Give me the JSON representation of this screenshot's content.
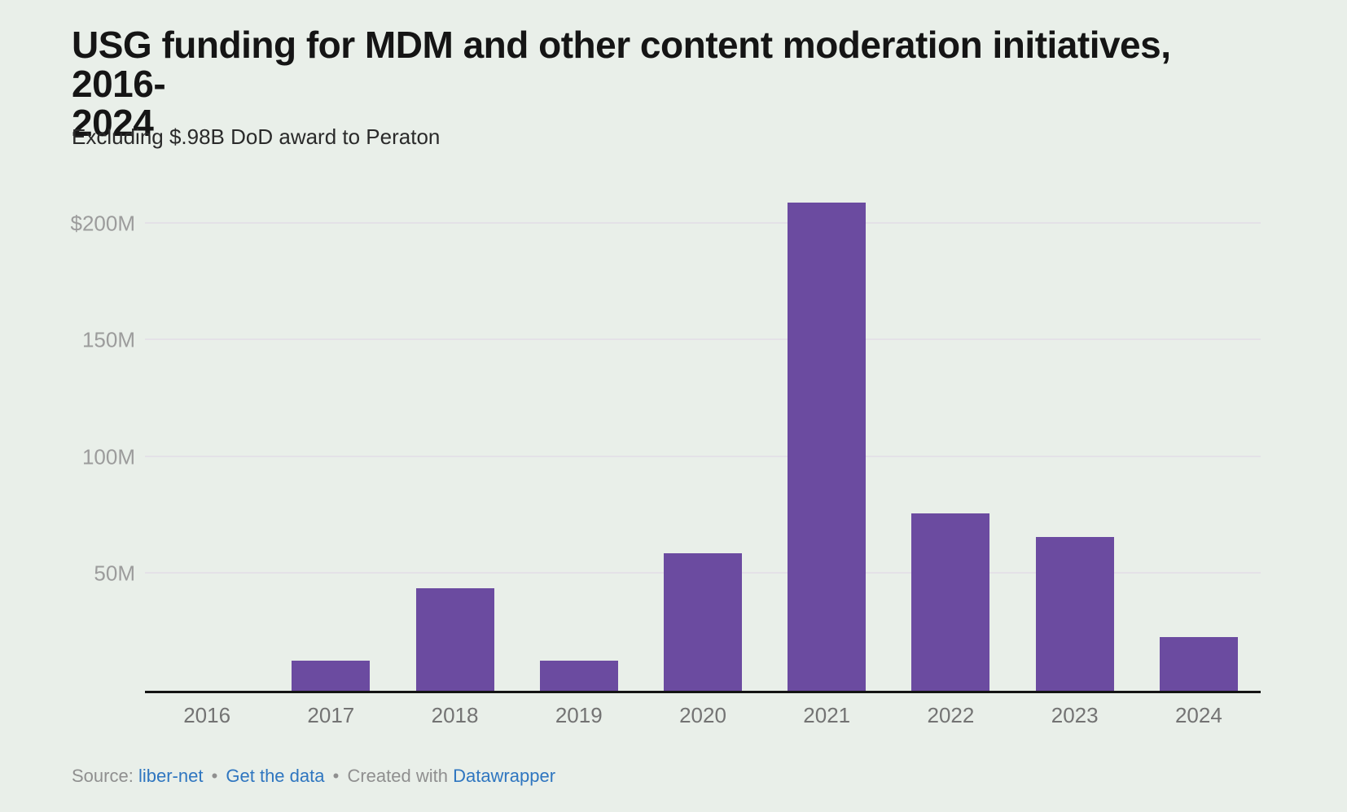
{
  "title_lines": [
    "USG funding for MDM and other content moderation initiatives, 2016-",
    "2024"
  ],
  "subtitle": "Excluding $.98B DoD award to Peraton",
  "footer": {
    "source_label": "Source:",
    "source_link": "liber-net",
    "separator": "•",
    "get_data_link": "Get the data",
    "created_with": "Created with",
    "tool_link": "Datawrapper"
  },
  "colors": {
    "background": "#e9efe9",
    "bar": "#6b4ba0",
    "gridline": "#e4e1e7",
    "axis_line": "#141414",
    "y_tick_label": "#9c9c9c",
    "x_tick_label": "#737373",
    "title": "#151515",
    "subtitle": "#2a2a2a",
    "footer_text": "#8f8f8f",
    "link": "#2f76c0"
  },
  "chart_data": {
    "type": "bar",
    "title": "USG funding for MDM and other content moderation initiatives, 2016-2024",
    "subtitle": "Excluding $.98B DoD award to Peraton",
    "categories": [
      "2016",
      "2017",
      "2018",
      "2019",
      "2020",
      "2021",
      "2022",
      "2023",
      "2024"
    ],
    "values": [
      0,
      13,
      44,
      13,
      59,
      209,
      76,
      66,
      23
    ],
    "values_unit": "USD millions",
    "xlabel": "",
    "ylabel": "",
    "ylim": [
      0,
      216
    ],
    "y_ticks": [
      {
        "value": 50,
        "label": "50M"
      },
      {
        "value": 100,
        "label": "100M"
      },
      {
        "value": 150,
        "label": "150M"
      },
      {
        "value": 200,
        "label": "$200M"
      }
    ],
    "grid": "horizontal",
    "legend": "none",
    "bar_color": "#6b4ba0"
  }
}
